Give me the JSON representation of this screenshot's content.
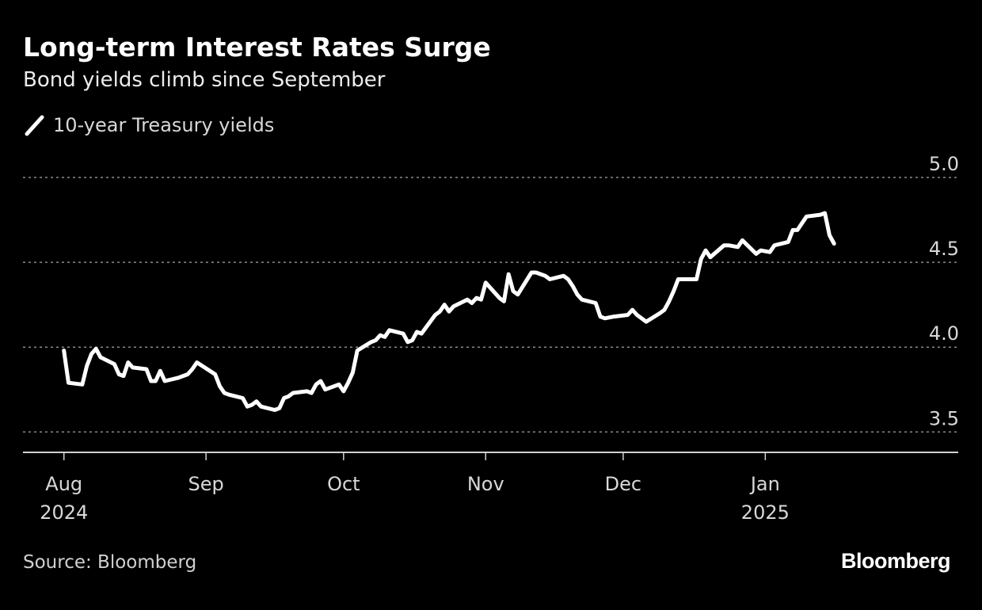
{
  "title": "Long-term Interest Rates Surge",
  "subtitle": "Bond yields climb since September",
  "source": "Source: Bloomberg",
  "brand": "Bloomberg",
  "colors": {
    "background": "#000000",
    "line": "#ffffff",
    "grid": "#8a8a8a",
    "text": "#d8d8d8"
  },
  "chart_data": {
    "type": "line",
    "grid": true,
    "legend_position": "top-left",
    "ylim": [
      3.38,
      5.0
    ],
    "yticks": [
      3.5,
      4.0,
      4.5,
      5.0
    ],
    "ytick_labels": [
      "3.5",
      "4.0",
      "4.5",
      "5.0"
    ],
    "xticks": [
      {
        "date": "2024-08-01",
        "label": "Aug",
        "year": "2024"
      },
      {
        "date": "2024-09-01",
        "label": "Sep",
        "year": ""
      },
      {
        "date": "2024-10-01",
        "label": "Oct",
        "year": ""
      },
      {
        "date": "2024-11-01",
        "label": "Nov",
        "year": ""
      },
      {
        "date": "2024-12-01",
        "label": "Dec",
        "year": ""
      },
      {
        "date": "2025-01-01",
        "label": "Jan",
        "year": "2025"
      }
    ],
    "xlim": [
      "2024-07-26",
      "2025-01-31"
    ],
    "series": [
      {
        "name": "10-year Treasury yields",
        "x": [
          "2024-08-01",
          "2024-08-02",
          "2024-08-05",
          "2024-08-06",
          "2024-08-07",
          "2024-08-08",
          "2024-08-09",
          "2024-08-12",
          "2024-08-13",
          "2024-08-14",
          "2024-08-15",
          "2024-08-16",
          "2024-08-19",
          "2024-08-20",
          "2024-08-21",
          "2024-08-22",
          "2024-08-23",
          "2024-08-26",
          "2024-08-27",
          "2024-08-28",
          "2024-08-29",
          "2024-08-30",
          "2024-09-03",
          "2024-09-04",
          "2024-09-05",
          "2024-09-06",
          "2024-09-09",
          "2024-09-10",
          "2024-09-11",
          "2024-09-12",
          "2024-09-13",
          "2024-09-16",
          "2024-09-17",
          "2024-09-18",
          "2024-09-19",
          "2024-09-20",
          "2024-09-23",
          "2024-09-24",
          "2024-09-25",
          "2024-09-26",
          "2024-09-27",
          "2024-09-30",
          "2024-10-01",
          "2024-10-02",
          "2024-10-03",
          "2024-10-04",
          "2024-10-07",
          "2024-10-08",
          "2024-10-09",
          "2024-10-10",
          "2024-10-11",
          "2024-10-14",
          "2024-10-15",
          "2024-10-16",
          "2024-10-17",
          "2024-10-18",
          "2024-10-21",
          "2024-10-22",
          "2024-10-23",
          "2024-10-24",
          "2024-10-25",
          "2024-10-28",
          "2024-10-29",
          "2024-10-30",
          "2024-10-31",
          "2024-11-01",
          "2024-11-04",
          "2024-11-05",
          "2024-11-06",
          "2024-11-07",
          "2024-11-08",
          "2024-11-11",
          "2024-11-12",
          "2024-11-13",
          "2024-11-14",
          "2024-11-15",
          "2024-11-18",
          "2024-11-19",
          "2024-11-20",
          "2024-11-21",
          "2024-11-22",
          "2024-11-25",
          "2024-11-26",
          "2024-11-27",
          "2024-11-29",
          "2024-12-02",
          "2024-12-03",
          "2024-12-04",
          "2024-12-05",
          "2024-12-06",
          "2024-12-09",
          "2024-12-10",
          "2024-12-11",
          "2024-12-12",
          "2024-12-13",
          "2024-12-16",
          "2024-12-17",
          "2024-12-18",
          "2024-12-19",
          "2024-12-20",
          "2024-12-23",
          "2024-12-24",
          "2024-12-26",
          "2024-12-27",
          "2024-12-30",
          "2024-12-31",
          "2025-01-02",
          "2025-01-03",
          "2025-01-06",
          "2025-01-07",
          "2025-01-08",
          "2025-01-10",
          "2025-01-13",
          "2025-01-14",
          "2025-01-15",
          "2025-01-16"
        ],
        "values": [
          3.98,
          3.79,
          3.78,
          3.89,
          3.96,
          3.99,
          3.94,
          3.9,
          3.84,
          3.83,
          3.91,
          3.88,
          3.87,
          3.8,
          3.8,
          3.86,
          3.8,
          3.82,
          3.83,
          3.84,
          3.87,
          3.91,
          3.84,
          3.77,
          3.73,
          3.72,
          3.7,
          3.65,
          3.66,
          3.68,
          3.65,
          3.63,
          3.64,
          3.7,
          3.71,
          3.73,
          3.74,
          3.73,
          3.78,
          3.8,
          3.75,
          3.78,
          3.74,
          3.79,
          3.85,
          3.98,
          4.03,
          4.04,
          4.07,
          4.06,
          4.1,
          4.08,
          4.03,
          4.04,
          4.09,
          4.08,
          4.19,
          4.21,
          4.25,
          4.21,
          4.24,
          4.28,
          4.26,
          4.29,
          4.28,
          4.38,
          4.29,
          4.27,
          4.43,
          4.33,
          4.31,
          4.44,
          4.44,
          4.43,
          4.42,
          4.4,
          4.42,
          4.4,
          4.36,
          4.31,
          4.28,
          4.26,
          4.18,
          4.17,
          4.18,
          4.19,
          4.22,
          4.19,
          4.17,
          4.15,
          4.2,
          4.22,
          4.27,
          4.33,
          4.4,
          4.4,
          4.4,
          4.52,
          4.57,
          4.53,
          4.6,
          4.6,
          4.59,
          4.63,
          4.55,
          4.57,
          4.56,
          4.6,
          4.62,
          4.69,
          4.69,
          4.77,
          4.78,
          4.79,
          4.66,
          4.61
        ]
      }
    ]
  }
}
